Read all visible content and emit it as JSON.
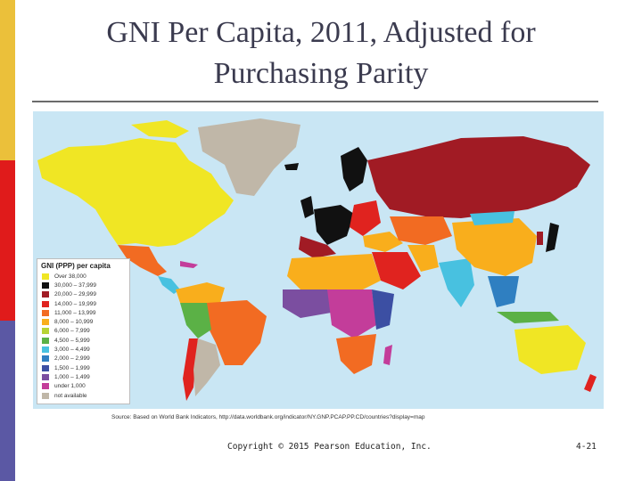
{
  "slide": {
    "title_line1": "GNI Per Capita, 2011, Adjusted for",
    "title_line2": "Purchasing Parity",
    "accent_colors": [
      "#ebc03a",
      "#e01b1b",
      "#5b58a4"
    ]
  },
  "legend": {
    "title": "GNI (PPP) per capita",
    "items": [
      {
        "label": "Over 38,000",
        "color": "#f0e624"
      },
      {
        "label": "30,000 – 37,999",
        "color": "#111111"
      },
      {
        "label": "20,000 – 29,999",
        "color": "#a11b24"
      },
      {
        "label": "14,000 – 19,999",
        "color": "#e0231f"
      },
      {
        "label": "11,000 – 13,999",
        "color": "#f26b22"
      },
      {
        "label": "8,000 – 10,999",
        "color": "#f9ae1c"
      },
      {
        "label": "6,000 – 7,999",
        "color": "#b7d334"
      },
      {
        "label": "4,500 – 5,999",
        "color": "#5bb146"
      },
      {
        "label": "3,000 – 4,499",
        "color": "#48c1e0"
      },
      {
        "label": "2,000 – 2,999",
        "color": "#2f7fc1"
      },
      {
        "label": "1,500 – 1,999",
        "color": "#3c4fa3"
      },
      {
        "label": "1,000 – 1,499",
        "color": "#7b4ea0"
      },
      {
        "label": "under 1,000",
        "color": "#c33d9a"
      },
      {
        "label": "not available",
        "color": "#c0b7a8"
      }
    ]
  },
  "source_text": "Source: Based on World Bank Indicators, http://data.worldbank.org/indicator/NY.GNP.PCAP.PP.CD/countries?display=map",
  "footer": {
    "copyright": "Copyright © 2015 Pearson Education, Inc.",
    "page_number": "4-21"
  }
}
